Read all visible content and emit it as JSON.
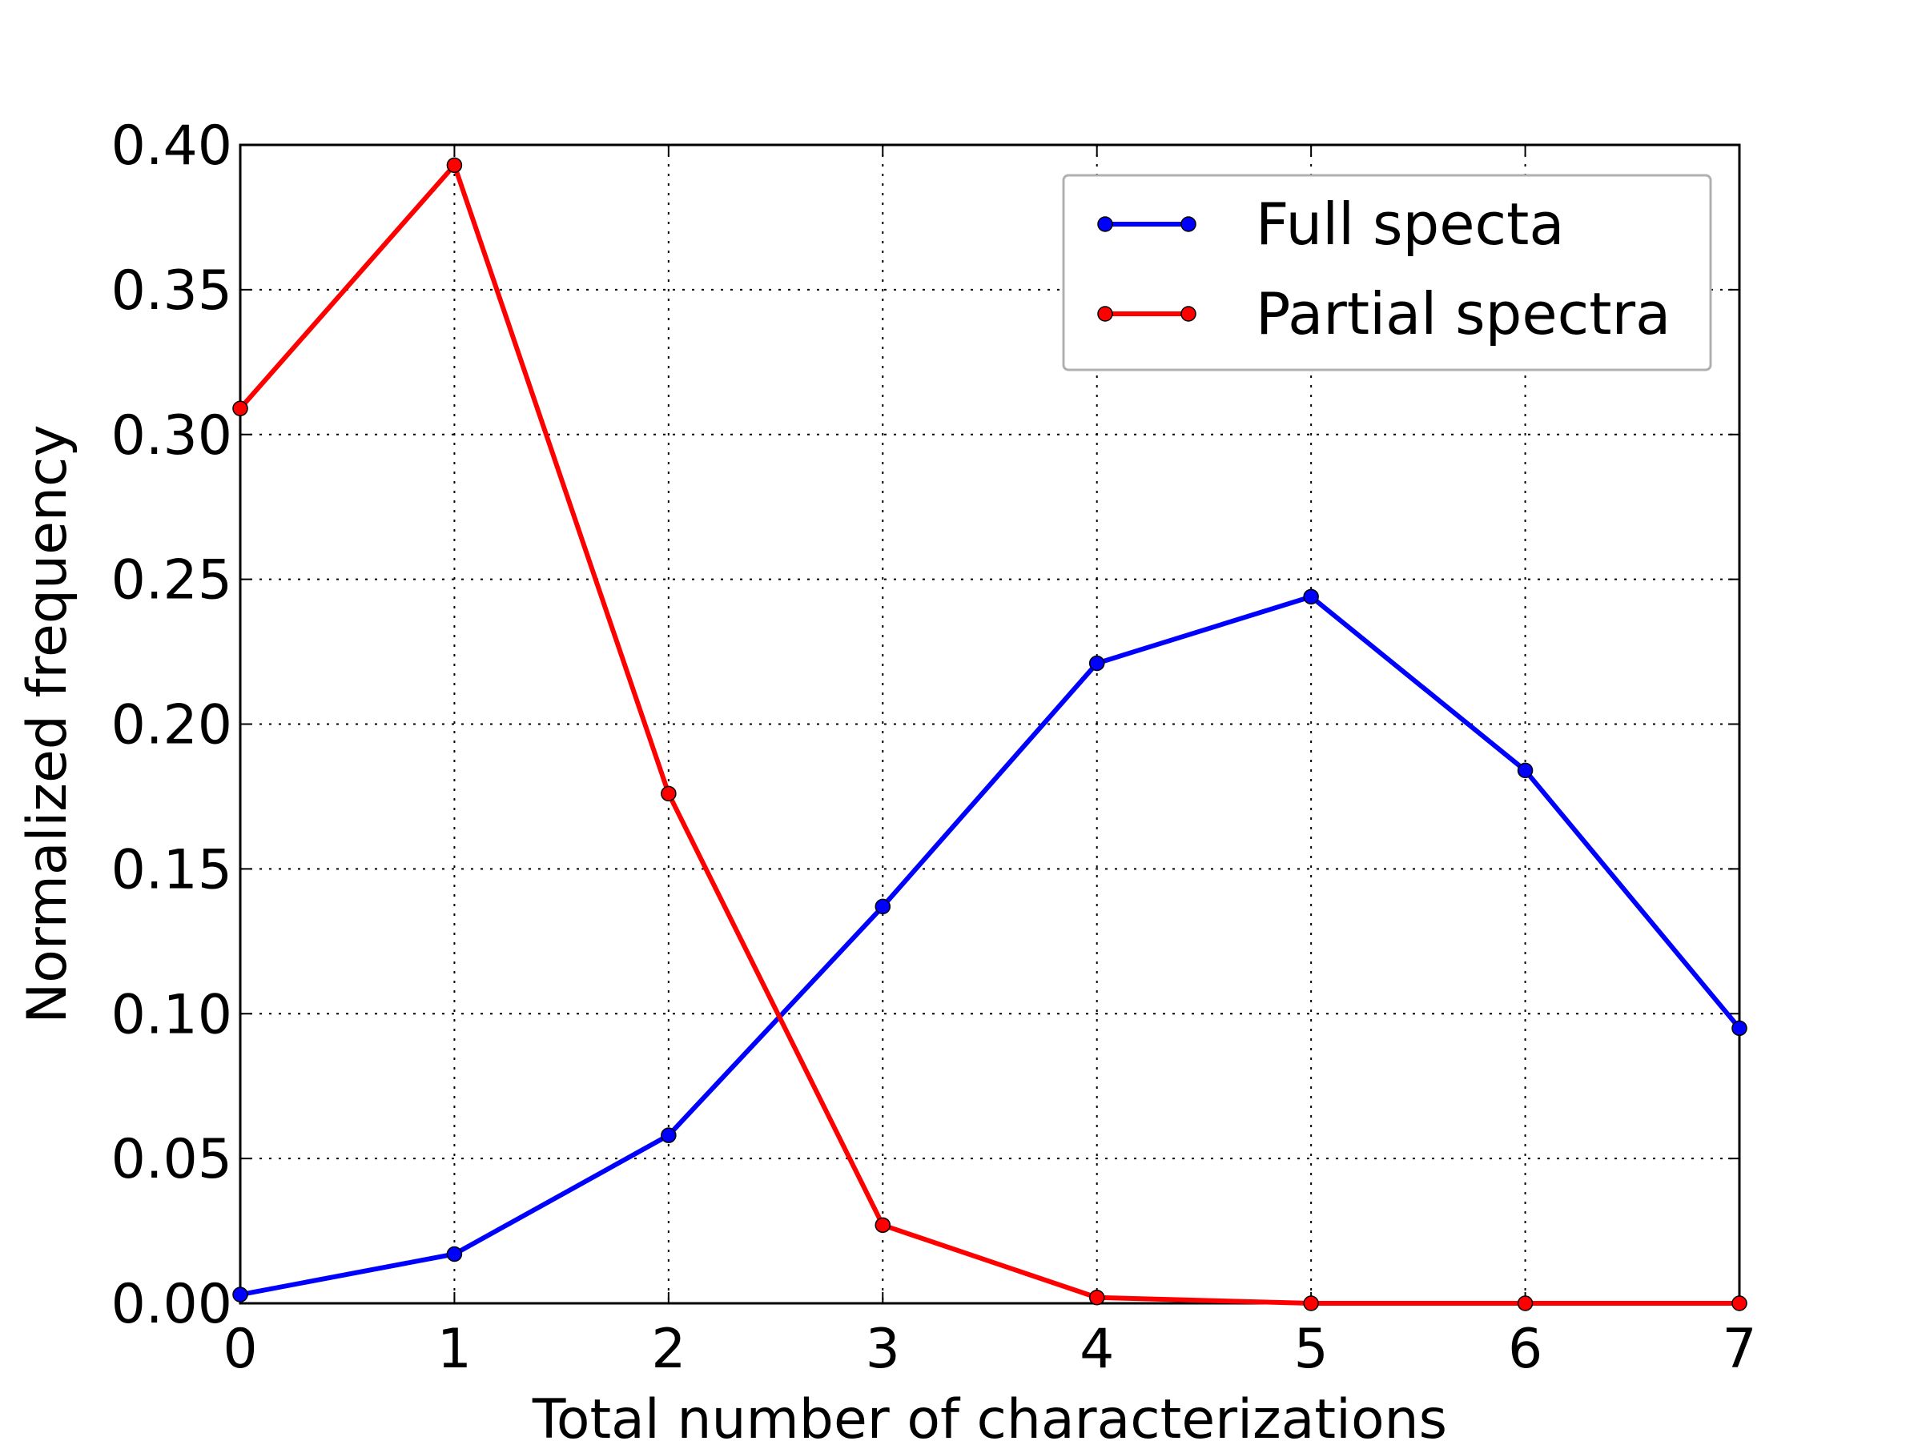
{
  "chart_data": {
    "type": "line",
    "title": "",
    "xlabel": "Total number of characterizations",
    "ylabel": "Normalized frequency",
    "xlim": [
      0,
      7
    ],
    "ylim": [
      0,
      0.4
    ],
    "xticks": [
      "0",
      "1",
      "2",
      "3",
      "4",
      "5",
      "6",
      "7"
    ],
    "yticks": [
      "0.00",
      "0.05",
      "0.10",
      "0.15",
      "0.20",
      "0.25",
      "0.30",
      "0.35",
      "0.40"
    ],
    "grid": true,
    "legend_position": "top-right",
    "x": [
      0,
      1,
      2,
      3,
      4,
      5,
      6,
      7
    ],
    "series": [
      {
        "name": "Full specta",
        "color": "#0000ff",
        "values": [
          0.003,
          0.017,
          0.058,
          0.137,
          0.221,
          0.244,
          0.184,
          0.095
        ]
      },
      {
        "name": "Partial spectra",
        "color": "#ff0000",
        "values": [
          0.309,
          0.393,
          0.176,
          0.027,
          0.002,
          0.0,
          0.0,
          0.0
        ]
      }
    ]
  }
}
